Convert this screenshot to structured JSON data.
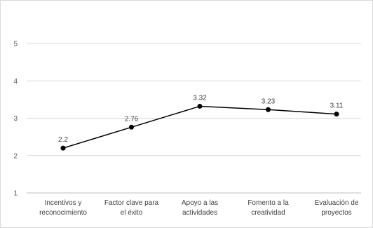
{
  "chart_data": {
    "type": "line",
    "title": "",
    "xlabel": "",
    "ylabel": "",
    "ylim": [
      1,
      5
    ],
    "yticks": [
      "1",
      "2",
      "3",
      "4",
      "5"
    ],
    "grid": true,
    "legend": "none",
    "categories": [
      [
        "Incentivos y",
        "reconocimiento"
      ],
      [
        "Factor clave para",
        "el éxito"
      ],
      [
        "Apoyo a las",
        "actividades"
      ],
      [
        "Fomento a la",
        "creatividad"
      ],
      [
        "Evaluación de",
        "proyectos"
      ]
    ],
    "values": [
      2.2,
      2.76,
      3.32,
      3.23,
      3.11
    ],
    "data_labels": [
      "2.2",
      "2.76",
      "3.32",
      "3.23",
      "3.11"
    ],
    "colors": {
      "line": "#000000",
      "marker": "#000000",
      "grid": "#d9d9d9",
      "axis": "#bfbfbf"
    }
  }
}
